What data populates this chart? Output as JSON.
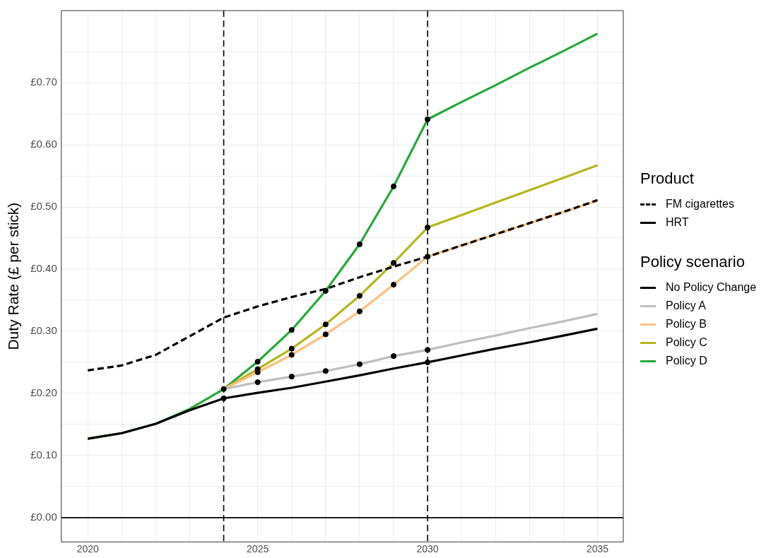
{
  "chart_data": {
    "type": "line",
    "ylabel": "Duty Rate (£ per stick)",
    "x": [
      2020,
      2021,
      2022,
      2023,
      2024,
      2025,
      2026,
      2027,
      2028,
      2029,
      2030,
      2031,
      2032,
      2033,
      2034,
      2035
    ],
    "series": [
      {
        "name": "FM cigarettes",
        "color": "#000000",
        "line_style": "dashed",
        "values": [
          0.237,
          0.245,
          0.262,
          0.292,
          0.322,
          0.34,
          0.355,
          0.368,
          0.387,
          0.404,
          0.42,
          0.438,
          0.456,
          0.474,
          0.492,
          0.511
        ]
      },
      {
        "name": "HRT",
        "color": "#000000",
        "line_style": "solid",
        "values": [
          null,
          null,
          null,
          null,
          null,
          null,
          null,
          null,
          null,
          null,
          null,
          null,
          null,
          null,
          null,
          null
        ]
      },
      {
        "name": "No Policy Change",
        "color": "#000000",
        "line_style": "solid",
        "values": [
          0.127,
          0.136,
          0.151,
          0.173,
          0.192,
          0.201,
          0.209,
          0.219,
          0.229,
          0.24,
          0.25,
          0.261,
          0.272,
          0.282,
          0.293,
          0.304
        ]
      },
      {
        "name": "Policy A",
        "color": "#bebebe",
        "line_style": "solid",
        "values": [
          null,
          null,
          null,
          null,
          0.207,
          0.218,
          0.227,
          0.236,
          0.247,
          0.26,
          0.27,
          0.282,
          0.293,
          0.305,
          0.316,
          0.328
        ]
      },
      {
        "name": "Policy B",
        "color": "#ffbe7f",
        "line_style": "solid",
        "values": [
          null,
          null,
          null,
          null,
          0.207,
          0.234,
          0.262,
          0.295,
          0.332,
          0.375,
          0.42,
          0.438,
          0.456,
          0.474,
          0.492,
          0.51
        ]
      },
      {
        "name": "Policy C",
        "color": "#b5b51d",
        "line_style": "solid",
        "values": [
          null,
          null,
          null,
          null,
          0.207,
          0.239,
          0.272,
          0.311,
          0.357,
          0.41,
          0.467,
          0.487,
          0.507,
          0.527,
          0.547,
          0.567
        ]
      },
      {
        "name": "Policy D",
        "color": "#25a83a",
        "line_style": "solid",
        "values": [
          0.127,
          0.136,
          0.151,
          0.175,
          0.207,
          0.251,
          0.302,
          0.365,
          0.44,
          0.533,
          0.641,
          0.669,
          0.696,
          0.724,
          0.751,
          0.779
        ]
      },
      {
        "type": "scatter",
        "color": "#000000",
        "marker": "circle",
        "x": [
          2024,
          2030,
          2024,
          2025,
          2026,
          2027,
          2028,
          2029,
          2030,
          2025,
          2026,
          2027,
          2028,
          2029,
          2030,
          2025,
          2026,
          2027,
          2028,
          2029,
          2030,
          2025,
          2026,
          2027,
          2028,
          2029,
          2030
        ],
        "values": [
          0.192,
          0.25,
          0.207,
          0.218,
          0.227,
          0.236,
          0.247,
          0.26,
          0.27,
          0.234,
          0.262,
          0.295,
          0.332,
          0.375,
          0.42,
          0.239,
          0.272,
          0.311,
          0.357,
          0.41,
          0.467,
          0.251,
          0.302,
          0.365,
          0.44,
          0.533,
          0.641
        ]
      }
    ],
    "xlim": [
      2019.22,
      2035.76
    ],
    "xticks": [
      2020,
      {
        "value": 2021,
        "label": null
      },
      {
        "value": 2022,
        "label": null
      },
      {
        "value": 2023,
        "label": null
      },
      2025,
      {
        "value": 2026,
        "label": null
      },
      {
        "value": 2027,
        "label": null
      },
      {
        "value": 2028,
        "label": null
      },
      {
        "value": 2029,
        "label": null
      },
      2030,
      {
        "value": 2031,
        "label": null
      },
      {
        "value": 2032,
        "label": null
      },
      {
        "value": 2033,
        "label": null
      },
      {
        "value": 2034,
        "label": null
      },
      2035
    ],
    "ylim": [
      -0.039,
      0.816
    ],
    "yticks": [
      {
        "value": 0,
        "label": "£0.00"
      },
      {
        "value": 0.05,
        "label": null
      },
      {
        "value": 0.1,
        "label": "£0.10"
      },
      {
        "value": 0.15,
        "label": null
      },
      {
        "value": 0.2,
        "label": "£0.20"
      },
      {
        "value": 0.25,
        "label": null
      },
      {
        "value": 0.3,
        "label": "£0.30"
      },
      {
        "value": 0.35,
        "label": null
      },
      {
        "value": 0.4,
        "label": "£0.40"
      },
      {
        "value": 0.45,
        "label": null
      },
      {
        "value": 0.5,
        "label": "£0.50"
      },
      {
        "value": 0.55,
        "label": null
      },
      {
        "value": 0.6,
        "label": "£0.60"
      },
      {
        "value": 0.65,
        "label": null
      },
      {
        "value": 0.7,
        "label": "£0.70"
      },
      {
        "value": 0.75,
        "label": null
      }
    ],
    "ref_lines": [
      {
        "axis": "x",
        "value": 2024,
        "line_style": "dashed",
        "color": "#000000"
      },
      {
        "axis": "x",
        "value": 2030,
        "line_style": "dashed",
        "color": "#000000"
      },
      {
        "axis": "y",
        "value": 0,
        "line_style": "solid",
        "color": "#000000"
      }
    ],
    "grid": true,
    "legend": "right",
    "legend_title": "Policy scenario",
    "annotations": [
      "Product"
    ]
  }
}
